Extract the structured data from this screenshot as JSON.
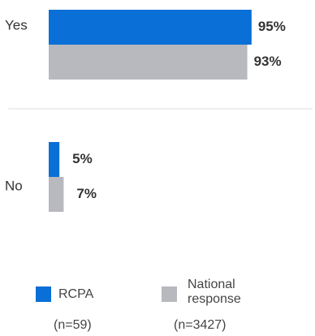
{
  "chart_data": {
    "type": "bar",
    "orientation": "horizontal",
    "categories": [
      "Yes",
      "No"
    ],
    "series": [
      {
        "name": "RCPA",
        "n_label": "(n=59)",
        "values": [
          95,
          5
        ],
        "labels": [
          "95%",
          "5%"
        ],
        "color": "#0a6fd6"
      },
      {
        "name": "National response",
        "n_label": "(n=3427)",
        "values": [
          93,
          7
        ],
        "labels": [
          "93%",
          "7%"
        ],
        "color": "#b8b8bf"
      }
    ],
    "unit": "%",
    "xlim": [
      0,
      100
    ],
    "grid": false,
    "legend": "bottom"
  },
  "legend": {
    "items": [
      {
        "label_lines": [
          "RCPA"
        ],
        "n_label": "(n=59)",
        "color": "#0a6fd6"
      },
      {
        "label_lines": [
          "National",
          "response"
        ],
        "n_label": "(n=3427)",
        "color": "#b8b8bf"
      }
    ]
  },
  "colors": {
    "separator": "#dcdcdc",
    "text": "#333333"
  }
}
